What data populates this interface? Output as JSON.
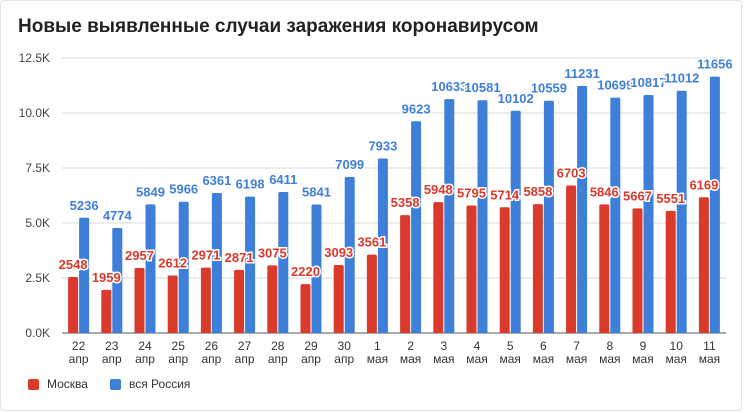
{
  "chart_data": {
    "type": "bar",
    "title": "Новые выявленные случаи заражения коронавирусом",
    "categories": [
      [
        "22",
        "апр"
      ],
      [
        "23",
        "апр"
      ],
      [
        "24",
        "апр"
      ],
      [
        "25",
        "апр"
      ],
      [
        "26",
        "апр"
      ],
      [
        "27",
        "апр"
      ],
      [
        "28",
        "апр"
      ],
      [
        "29",
        "апр"
      ],
      [
        "30",
        "апр"
      ],
      [
        "1",
        "мая"
      ],
      [
        "2",
        "мая"
      ],
      [
        "3",
        "мая"
      ],
      [
        "4",
        "мая"
      ],
      [
        "5",
        "мая"
      ],
      [
        "6",
        "мая"
      ],
      [
        "7",
        "мая"
      ],
      [
        "8",
        "мая"
      ],
      [
        "9",
        "мая"
      ],
      [
        "10",
        "мая"
      ],
      [
        "11",
        "мая"
      ]
    ],
    "series": [
      {
        "name": "Москва",
        "color": "#d93a2b",
        "values": [
          2548,
          1959,
          2957,
          2612,
          2971,
          2871,
          3075,
          2220,
          3093,
          3561,
          5358,
          5948,
          5795,
          5714,
          5858,
          6703,
          5846,
          5667,
          5551,
          6169
        ]
      },
      {
        "name": "вся Россия",
        "color": "#3e7fd9",
        "values": [
          5236,
          4774,
          5849,
          5966,
          6361,
          6198,
          6411,
          5841,
          7099,
          7933,
          9623,
          10633,
          10581,
          10102,
          10559,
          11231,
          10699,
          10817,
          11012,
          11656
        ]
      }
    ],
    "yticks": [
      "0.0K",
      "2.5K",
      "5.0K",
      "7.5K",
      "10.0K",
      "12.5K"
    ],
    "ylim": [
      0,
      12500
    ],
    "grid": true,
    "legend_position": "bottom-left",
    "xlabel": "",
    "ylabel": ""
  }
}
